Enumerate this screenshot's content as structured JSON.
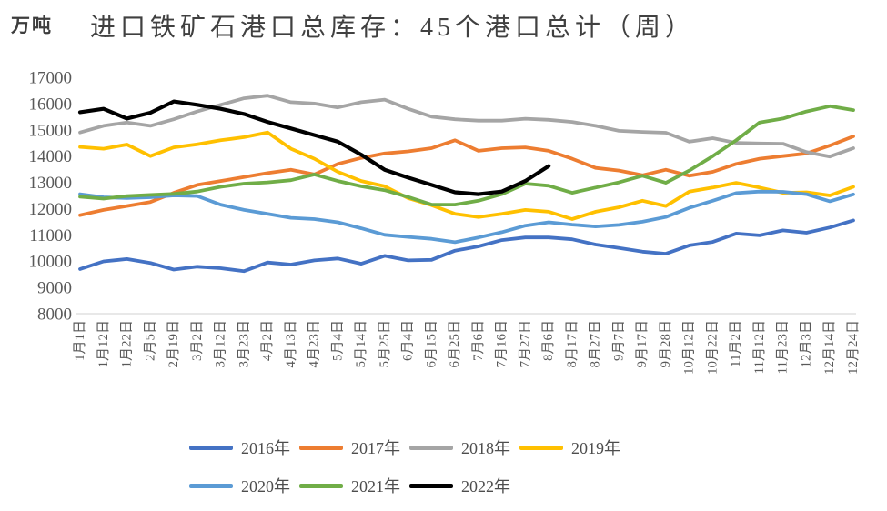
{
  "header": {
    "unit_label": "万吨",
    "title": "进口铁矿石港口总库存：45个港口总计（周）"
  },
  "colors": {
    "background": "#ffffff",
    "title_text": "#404040",
    "axis_text": "#595959",
    "axis_line": "#d9d9d9"
  },
  "chart_data": {
    "type": "line",
    "title": "进口铁矿石港口总库存：45个港口总计（周）",
    "ylabel_unit": "万吨",
    "ylim": [
      8000,
      17000
    ],
    "ytick_step": 1000,
    "yticks": [
      17000,
      16000,
      15000,
      14000,
      13000,
      12000,
      11000,
      10000,
      9000,
      8000
    ],
    "grid": false,
    "legend_position": "bottom",
    "x_label_rotation": -90,
    "categories": [
      "1月1日",
      "1月12日",
      "1月22日",
      "2月5日",
      "2月19日",
      "3月2日",
      "3月12日",
      "3月23日",
      "4月2日",
      "4月13日",
      "4月23日",
      "5月4日",
      "5月14日",
      "5月25日",
      "6月4日",
      "6月15日",
      "6月25日",
      "7月6日",
      "7月16日",
      "7月27日",
      "8月6日",
      "8月17日",
      "8月27日",
      "9月7日",
      "9月17日",
      "9月28日",
      "10月12日",
      "10月22日",
      "11月2日",
      "11月12日",
      "11月23日",
      "12月3日",
      "12月14日",
      "12月24日"
    ],
    "series": [
      {
        "name": "2016年",
        "color": "#4472C4",
        "stroke_width": 3.8,
        "values": [
          9700,
          9990,
          10080,
          9930,
          9680,
          9790,
          9730,
          9620,
          9950,
          9870,
          10030,
          10100,
          9900,
          10200,
          10030,
          10050,
          10400,
          10560,
          10800,
          10900,
          10900,
          10830,
          10630,
          10500,
          10360,
          10280,
          10600,
          10730,
          11050,
          10980,
          11170,
          11080,
          11280,
          11550
        ]
      },
      {
        "name": "2017年",
        "color": "#ED7D31",
        "stroke_width": 3.8,
        "values": [
          11750,
          11950,
          12100,
          12250,
          12600,
          12900,
          13050,
          13200,
          13350,
          13480,
          13300,
          13700,
          13930,
          14100,
          14180,
          14300,
          14600,
          14200,
          14300,
          14330,
          14200,
          13900,
          13550,
          13450,
          13270,
          13480,
          13250,
          13400,
          13700,
          13900,
          14000,
          14100,
          14400,
          14750
        ]
      },
      {
        "name": "2018年",
        "color": "#A5A5A5",
        "stroke_width": 3.8,
        "values": [
          14900,
          15150,
          15280,
          15150,
          15400,
          15700,
          15950,
          16200,
          16300,
          16050,
          16000,
          15850,
          16050,
          16150,
          15800,
          15500,
          15400,
          15350,
          15350,
          15420,
          15380,
          15300,
          15150,
          14960,
          14920,
          14890,
          14550,
          14680,
          14500,
          14480,
          14470,
          14150,
          13980,
          14300
        ]
      },
      {
        "name": "2019年",
        "color": "#FFC000",
        "stroke_width": 3.8,
        "values": [
          14350,
          14280,
          14440,
          14000,
          14330,
          14450,
          14600,
          14720,
          14900,
          14280,
          13900,
          13400,
          13050,
          12850,
          12400,
          12130,
          11800,
          11680,
          11800,
          11950,
          11880,
          11600,
          11880,
          12050,
          12300,
          12100,
          12650,
          12800,
          12980,
          12800,
          12600,
          12620,
          12500,
          12830
        ]
      },
      {
        "name": "2020年",
        "color": "#5B9BD5",
        "stroke_width": 3.8,
        "values": [
          12550,
          12430,
          12400,
          12430,
          12500,
          12480,
          12150,
          11950,
          11800,
          11650,
          11600,
          11480,
          11250,
          11000,
          10920,
          10850,
          10720,
          10900,
          11100,
          11350,
          11480,
          11390,
          11320,
          11380,
          11500,
          11680,
          12030,
          12300,
          12590,
          12650,
          12640,
          12550,
          12280,
          12540
        ]
      },
      {
        "name": "2021年",
        "color": "#70AD47",
        "stroke_width": 3.8,
        "values": [
          12450,
          12380,
          12480,
          12520,
          12560,
          12650,
          12830,
          12950,
          13000,
          13080,
          13300,
          13050,
          12850,
          12700,
          12440,
          12150,
          12150,
          12300,
          12550,
          12950,
          12870,
          12600,
          12800,
          13000,
          13250,
          12980,
          13450,
          14000,
          14600,
          15280,
          15430,
          15700,
          15900,
          15750
        ]
      },
      {
        "name": "2022年",
        "color": "#000000",
        "stroke_width": 4.2,
        "values": [
          15670,
          15800,
          15430,
          15650,
          16080,
          15950,
          15800,
          15600,
          15300,
          15050,
          14800,
          14550,
          14050,
          13480,
          13180,
          12900,
          12620,
          12550,
          12650,
          13050,
          13620,
          null,
          null,
          null,
          null,
          null,
          null,
          null,
          null,
          null,
          null,
          null,
          null,
          null
        ]
      }
    ],
    "legend_rows": [
      [
        "2016年",
        "2017年",
        "2018年",
        "2019年"
      ],
      [
        "2020年",
        "2021年",
        "2022年"
      ]
    ]
  }
}
